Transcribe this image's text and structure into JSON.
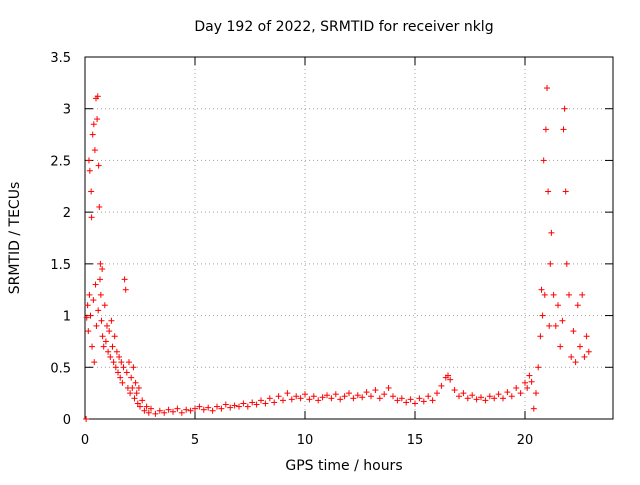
{
  "chart_data": {
    "type": "scatter",
    "title": "Day 192 of 2022, SRMTID for receiver nklg",
    "xlabel": "GPS time / hours",
    "ylabel": "SRMTID / TECUs",
    "xlim": [
      0,
      24
    ],
    "ylim": [
      0,
      3.5
    ],
    "xticks": [
      0,
      5,
      10,
      15,
      20
    ],
    "xtick_labels": [
      "0",
      "5",
      "10",
      "15",
      "20"
    ],
    "yticks": [
      0,
      0.5,
      1,
      1.5,
      2,
      2.5,
      3,
      3.5
    ],
    "ytick_labels": [
      "0",
      "0.5",
      "1",
      "1.5",
      "2",
      "2.5",
      "3",
      "3.5"
    ],
    "grid": true,
    "marker": "+",
    "marker_color": "#ff0000",
    "series": [
      {
        "name": "SRMTID",
        "points": [
          [
            0.05,
            0.0
          ],
          [
            0.08,
            0.98
          ],
          [
            0.12,
            1.1
          ],
          [
            0.15,
            0.85
          ],
          [
            0.18,
            2.5
          ],
          [
            0.2,
            1.2
          ],
          [
            0.22,
            2.4
          ],
          [
            0.25,
            1.0
          ],
          [
            0.28,
            2.2
          ],
          [
            0.3,
            1.95
          ],
          [
            0.32,
            0.7
          ],
          [
            0.35,
            2.75
          ],
          [
            0.38,
            1.15
          ],
          [
            0.4,
            2.85
          ],
          [
            0.42,
            0.55
          ],
          [
            0.45,
            2.6
          ],
          [
            0.48,
            1.3
          ],
          [
            0.5,
            3.1
          ],
          [
            0.52,
            0.9
          ],
          [
            0.55,
            2.9
          ],
          [
            0.58,
            3.12
          ],
          [
            0.6,
            1.05
          ],
          [
            0.62,
            2.45
          ],
          [
            0.65,
            2.05
          ],
          [
            0.68,
            1.35
          ],
          [
            0.7,
            1.5
          ],
          [
            0.72,
            1.2
          ],
          [
            0.75,
            0.95
          ],
          [
            0.78,
            1.45
          ],
          [
            0.8,
            0.8
          ],
          [
            0.85,
            0.7
          ],
          [
            0.9,
            1.1
          ],
          [
            0.95,
            0.75
          ],
          [
            1.0,
            0.9
          ],
          [
            1.05,
            0.65
          ],
          [
            1.1,
            0.85
          ],
          [
            1.15,
            0.6
          ],
          [
            1.2,
            0.95
          ],
          [
            1.25,
            0.7
          ],
          [
            1.3,
            0.55
          ],
          [
            1.35,
            0.8
          ],
          [
            1.4,
            0.5
          ],
          [
            1.45,
            0.65
          ],
          [
            1.5,
            0.45
          ],
          [
            1.55,
            0.6
          ],
          [
            1.6,
            0.4
          ],
          [
            1.65,
            0.55
          ],
          [
            1.7,
            0.35
          ],
          [
            1.75,
            0.5
          ],
          [
            1.8,
            1.35
          ],
          [
            1.85,
            1.25
          ],
          [
            1.9,
            0.45
          ],
          [
            1.95,
            0.3
          ],
          [
            2.0,
            0.55
          ],
          [
            2.05,
            0.25
          ],
          [
            2.1,
            0.4
          ],
          [
            2.15,
            0.3
          ],
          [
            2.2,
            0.5
          ],
          [
            2.25,
            0.2
          ],
          [
            2.3,
            0.35
          ],
          [
            2.35,
            0.25
          ],
          [
            2.4,
            0.15
          ],
          [
            2.45,
            0.3
          ],
          [
            2.5,
            0.12
          ],
          [
            2.6,
            0.18
          ],
          [
            2.7,
            0.08
          ],
          [
            2.8,
            0.12
          ],
          [
            2.9,
            0.06
          ],
          [
            3.0,
            0.1
          ],
          [
            3.2,
            0.05
          ],
          [
            3.4,
            0.08
          ],
          [
            3.6,
            0.06
          ],
          [
            3.8,
            0.09
          ],
          [
            4.0,
            0.07
          ],
          [
            4.2,
            0.1
          ],
          [
            4.4,
            0.06
          ],
          [
            4.6,
            0.09
          ],
          [
            4.8,
            0.08
          ],
          [
            5.0,
            0.1
          ],
          [
            5.2,
            0.12
          ],
          [
            5.4,
            0.09
          ],
          [
            5.6,
            0.11
          ],
          [
            5.8,
            0.08
          ],
          [
            6.0,
            0.12
          ],
          [
            6.2,
            0.1
          ],
          [
            6.4,
            0.14
          ],
          [
            6.6,
            0.11
          ],
          [
            6.8,
            0.13
          ],
          [
            7.0,
            0.12
          ],
          [
            7.2,
            0.15
          ],
          [
            7.4,
            0.12
          ],
          [
            7.6,
            0.16
          ],
          [
            7.8,
            0.14
          ],
          [
            8.0,
            0.18
          ],
          [
            8.2,
            0.15
          ],
          [
            8.4,
            0.2
          ],
          [
            8.6,
            0.16
          ],
          [
            8.8,
            0.22
          ],
          [
            9.0,
            0.18
          ],
          [
            9.2,
            0.25
          ],
          [
            9.4,
            0.19
          ],
          [
            9.6,
            0.22
          ],
          [
            9.8,
            0.2
          ],
          [
            10.0,
            0.24
          ],
          [
            10.2,
            0.19
          ],
          [
            10.4,
            0.22
          ],
          [
            10.6,
            0.18
          ],
          [
            10.8,
            0.21
          ],
          [
            11.0,
            0.23
          ],
          [
            11.2,
            0.2
          ],
          [
            11.4,
            0.24
          ],
          [
            11.6,
            0.19
          ],
          [
            11.8,
            0.22
          ],
          [
            12.0,
            0.25
          ],
          [
            12.2,
            0.2
          ],
          [
            12.4,
            0.23
          ],
          [
            12.6,
            0.21
          ],
          [
            12.8,
            0.26
          ],
          [
            13.0,
            0.22
          ],
          [
            13.2,
            0.28
          ],
          [
            13.4,
            0.2
          ],
          [
            13.6,
            0.24
          ],
          [
            13.8,
            0.3
          ],
          [
            14.0,
            0.22
          ],
          [
            14.2,
            0.18
          ],
          [
            14.4,
            0.2
          ],
          [
            14.6,
            0.16
          ],
          [
            14.8,
            0.19
          ],
          [
            15.0,
            0.15
          ],
          [
            15.2,
            0.2
          ],
          [
            15.4,
            0.17
          ],
          [
            15.6,
            0.22
          ],
          [
            15.8,
            0.18
          ],
          [
            16.0,
            0.25
          ],
          [
            16.2,
            0.32
          ],
          [
            16.4,
            0.4
          ],
          [
            16.5,
            0.42
          ],
          [
            16.6,
            0.38
          ],
          [
            16.8,
            0.28
          ],
          [
            17.0,
            0.22
          ],
          [
            17.2,
            0.25
          ],
          [
            17.4,
            0.2
          ],
          [
            17.6,
            0.23
          ],
          [
            17.8,
            0.19
          ],
          [
            18.0,
            0.21
          ],
          [
            18.2,
            0.18
          ],
          [
            18.4,
            0.22
          ],
          [
            18.6,
            0.2
          ],
          [
            18.8,
            0.24
          ],
          [
            19.0,
            0.2
          ],
          [
            19.2,
            0.26
          ],
          [
            19.4,
            0.22
          ],
          [
            19.6,
            0.3
          ],
          [
            19.8,
            0.25
          ],
          [
            20.0,
            0.35
          ],
          [
            20.1,
            0.3
          ],
          [
            20.2,
            0.42
          ],
          [
            20.3,
            0.36
          ],
          [
            20.4,
            0.1
          ],
          [
            20.5,
            0.25
          ],
          [
            20.6,
            0.5
          ],
          [
            20.7,
            0.8
          ],
          [
            20.75,
            1.25
          ],
          [
            20.8,
            1.0
          ],
          [
            20.85,
            2.5
          ],
          [
            20.9,
            1.2
          ],
          [
            20.95,
            2.8
          ],
          [
            21.0,
            3.2
          ],
          [
            21.05,
            2.2
          ],
          [
            21.1,
            0.9
          ],
          [
            21.15,
            1.5
          ],
          [
            21.2,
            1.8
          ],
          [
            21.3,
            1.2
          ],
          [
            21.4,
            0.9
          ],
          [
            21.5,
            1.1
          ],
          [
            21.6,
            0.7
          ],
          [
            21.7,
            0.95
          ],
          [
            21.75,
            2.8
          ],
          [
            21.8,
            3.0
          ],
          [
            21.85,
            2.2
          ],
          [
            21.9,
            1.5
          ],
          [
            22.0,
            1.2
          ],
          [
            22.1,
            0.6
          ],
          [
            22.2,
            0.85
          ],
          [
            22.3,
            0.55
          ],
          [
            22.4,
            1.1
          ],
          [
            22.5,
            0.7
          ],
          [
            22.6,
            1.2
          ],
          [
            22.7,
            0.6
          ],
          [
            22.8,
            0.8
          ],
          [
            22.9,
            0.65
          ]
        ]
      }
    ]
  }
}
